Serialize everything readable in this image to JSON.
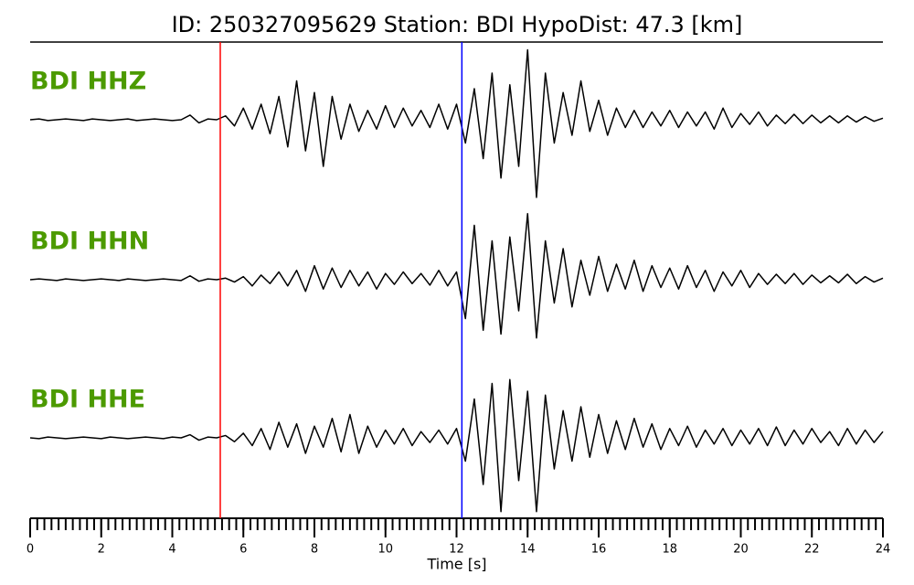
{
  "chart_data": {
    "type": "seismogram",
    "title": "ID: 250327095629   Station: BDI   HypoDist:    47.3 [km]",
    "xlabel": "Time [s]",
    "xlim": [
      0,
      24
    ],
    "xticks": [
      0,
      2,
      4,
      6,
      8,
      10,
      12,
      14,
      16,
      18,
      20,
      22,
      24
    ],
    "xminor_step": 0.2,
    "ylim": [
      -1,
      1
    ],
    "label_color": "#4c9a00",
    "markers": [
      {
        "time": 5.35,
        "color": "#ff0000"
      },
      {
        "time": 12.15,
        "color": "#0000ff"
      }
    ],
    "x": [
      0,
      0.25,
      0.5,
      0.75,
      1,
      1.25,
      1.5,
      1.75,
      2,
      2.25,
      2.5,
      2.75,
      3,
      3.25,
      3.5,
      3.75,
      4,
      4.25,
      4.5,
      4.75,
      5,
      5.25,
      5.5,
      5.75,
      6,
      6.25,
      6.5,
      6.75,
      7,
      7.25,
      7.5,
      7.75,
      8,
      8.25,
      8.5,
      8.75,
      9,
      9.25,
      9.5,
      9.75,
      10,
      10.25,
      10.5,
      10.75,
      11,
      11.25,
      11.5,
      11.75,
      12,
      12.25,
      12.5,
      12.75,
      13,
      13.25,
      13.5,
      13.75,
      14,
      14.25,
      14.5,
      14.75,
      15,
      15.25,
      15.5,
      15.75,
      16,
      16.25,
      16.5,
      16.75,
      17,
      17.25,
      17.5,
      17.75,
      18,
      18.25,
      18.5,
      18.75,
      19,
      19.25,
      19.5,
      19.75,
      20,
      20.25,
      20.5,
      20.75,
      21,
      21.25,
      21.5,
      21.75,
      22,
      22.25,
      22.5,
      22.75,
      23,
      23.25,
      23.5,
      23.75,
      24
    ],
    "series": [
      {
        "name": "BDI HHZ",
        "color": "#000000",
        "values": [
          0,
          0.01,
          -0.01,
          0,
          0.01,
          0,
          -0.01,
          0.01,
          0,
          -0.01,
          0,
          0.01,
          -0.01,
          0,
          0.01,
          0,
          -0.01,
          0,
          0.06,
          -0.04,
          0.01,
          0,
          0.05,
          -0.08,
          0.15,
          -0.12,
          0.2,
          -0.18,
          0.3,
          -0.35,
          0.5,
          -0.4,
          0.35,
          -0.6,
          0.3,
          -0.25,
          0.2,
          -0.15,
          0.12,
          -0.12,
          0.18,
          -0.1,
          0.15,
          -0.08,
          0.12,
          -0.1,
          0.2,
          -0.12,
          0.2,
          -0.3,
          0.4,
          -0.5,
          0.6,
          -0.75,
          0.45,
          -0.6,
          0.9,
          -1.0,
          0.6,
          -0.3,
          0.35,
          -0.2,
          0.5,
          -0.15,
          0.25,
          -0.2,
          0.15,
          -0.1,
          0.12,
          -0.1,
          0.1,
          -0.08,
          0.12,
          -0.1,
          0.1,
          -0.08,
          0.1,
          -0.12,
          0.15,
          -0.1,
          0.08,
          -0.06,
          0.1,
          -0.08,
          0.06,
          -0.05,
          0.07,
          -0.05,
          0.06,
          -0.04,
          0.05,
          -0.04,
          0.05,
          -0.03,
          0.04,
          -0.02,
          0.02
        ]
      },
      {
        "name": "BDI HHN",
        "color": "#000000",
        "values": [
          0,
          0.01,
          0,
          -0.01,
          0.01,
          0,
          -0.01,
          0,
          0.01,
          0,
          -0.01,
          0.01,
          0,
          -0.01,
          0,
          0.01,
          0,
          -0.01,
          0.05,
          -0.02,
          0.01,
          0,
          0.02,
          -0.03,
          0.04,
          -0.08,
          0.06,
          -0.05,
          0.1,
          -0.08,
          0.12,
          -0.15,
          0.18,
          -0.12,
          0.15,
          -0.1,
          0.12,
          -0.08,
          0.1,
          -0.12,
          0.08,
          -0.06,
          0.1,
          -0.05,
          0.08,
          -0.07,
          0.12,
          -0.08,
          0.1,
          -0.5,
          0.7,
          -0.65,
          0.5,
          -0.7,
          0.55,
          -0.4,
          0.85,
          -0.75,
          0.5,
          -0.3,
          0.4,
          -0.35,
          0.25,
          -0.2,
          0.3,
          -0.15,
          0.2,
          -0.12,
          0.25,
          -0.15,
          0.18,
          -0.1,
          0.15,
          -0.12,
          0.18,
          -0.1,
          0.12,
          -0.15,
          0.1,
          -0.08,
          0.12,
          -0.1,
          0.08,
          -0.06,
          0.07,
          -0.05,
          0.08,
          -0.06,
          0.06,
          -0.04,
          0.05,
          -0.04,
          0.07,
          -0.05,
          0.04,
          -0.03,
          0.02
        ]
      },
      {
        "name": "BDI HHE",
        "color": "#000000",
        "values": [
          0,
          -0.01,
          0.01,
          0,
          -0.01,
          0,
          0.01,
          0,
          -0.01,
          0.01,
          0,
          -0.01,
          0,
          0.01,
          0,
          -0.01,
          0.01,
          0,
          0.04,
          -0.03,
          0.01,
          0,
          0.03,
          -0.05,
          0.06,
          -0.1,
          0.12,
          -0.15,
          0.2,
          -0.12,
          0.18,
          -0.2,
          0.15,
          -0.12,
          0.25,
          -0.18,
          0.3,
          -0.2,
          0.15,
          -0.12,
          0.1,
          -0.08,
          0.12,
          -0.1,
          0.08,
          -0.06,
          0.1,
          -0.08,
          0.12,
          -0.3,
          0.5,
          -0.6,
          0.7,
          -0.95,
          0.75,
          -0.55,
          0.6,
          -0.95,
          0.55,
          -0.4,
          0.35,
          -0.3,
          0.4,
          -0.25,
          0.3,
          -0.2,
          0.22,
          -0.15,
          0.25,
          -0.12,
          0.18,
          -0.15,
          0.12,
          -0.1,
          0.15,
          -0.12,
          0.1,
          -0.08,
          0.12,
          -0.1,
          0.1,
          -0.08,
          0.12,
          -0.1,
          0.14,
          -0.1,
          0.1,
          -0.08,
          0.12,
          -0.06,
          0.08,
          -0.1,
          0.12,
          -0.08,
          0.1,
          -0.06,
          0.08
        ]
      }
    ]
  }
}
